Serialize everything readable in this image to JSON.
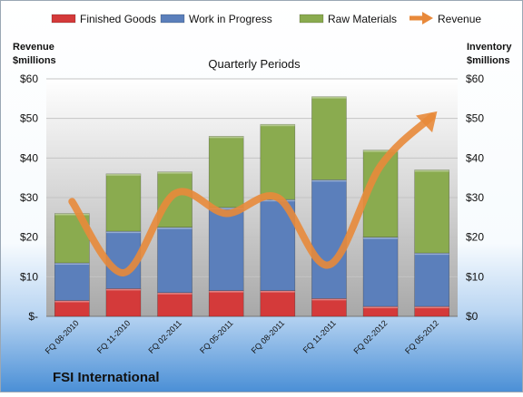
{
  "chart_data": {
    "type": "bar",
    "stacked": true,
    "company": "FSI International",
    "subtitle": "Quarterly Periods",
    "ylabel_left": [
      "Revenue",
      "$millions"
    ],
    "ylabel_right": [
      "Inventory",
      "$millions"
    ],
    "ylim": [
      0,
      60
    ],
    "yticks_left": [
      "$-",
      "$10",
      "$20",
      "$30",
      "$40",
      "$50",
      "$60"
    ],
    "yticks_right": [
      "$0",
      "$10",
      "$20",
      "$30",
      "$40",
      "$50",
      "$60"
    ],
    "categories": [
      "FQ 08-2010",
      "FQ 11-2010",
      "FQ 02-2011",
      "FQ 05-2011",
      "FQ 08-2011",
      "FQ 11-2011",
      "FQ 02-2012",
      "FQ 05-2012"
    ],
    "series": [
      {
        "name": "Finished Goods",
        "values": [
          4,
          7,
          6,
          6.5,
          6.5,
          4.5,
          2.5,
          2.5
        ],
        "color": "#d43a3a"
      },
      {
        "name": "Work in Progress",
        "values": [
          9.5,
          14.5,
          16.5,
          21,
          23,
          30,
          17.5,
          13.5
        ],
        "color": "#5b7fbb"
      },
      {
        "name": "Raw Materials",
        "values": [
          12.5,
          14.5,
          14,
          18,
          19,
          21,
          22,
          21
        ],
        "color": "#8aab4f"
      }
    ],
    "line": {
      "name": "Revenue",
      "values": [
        29,
        11,
        31,
        26,
        30,
        13,
        38,
        50.5
      ],
      "color": "#e8893a"
    },
    "legend_position": "top",
    "grid": true
  }
}
